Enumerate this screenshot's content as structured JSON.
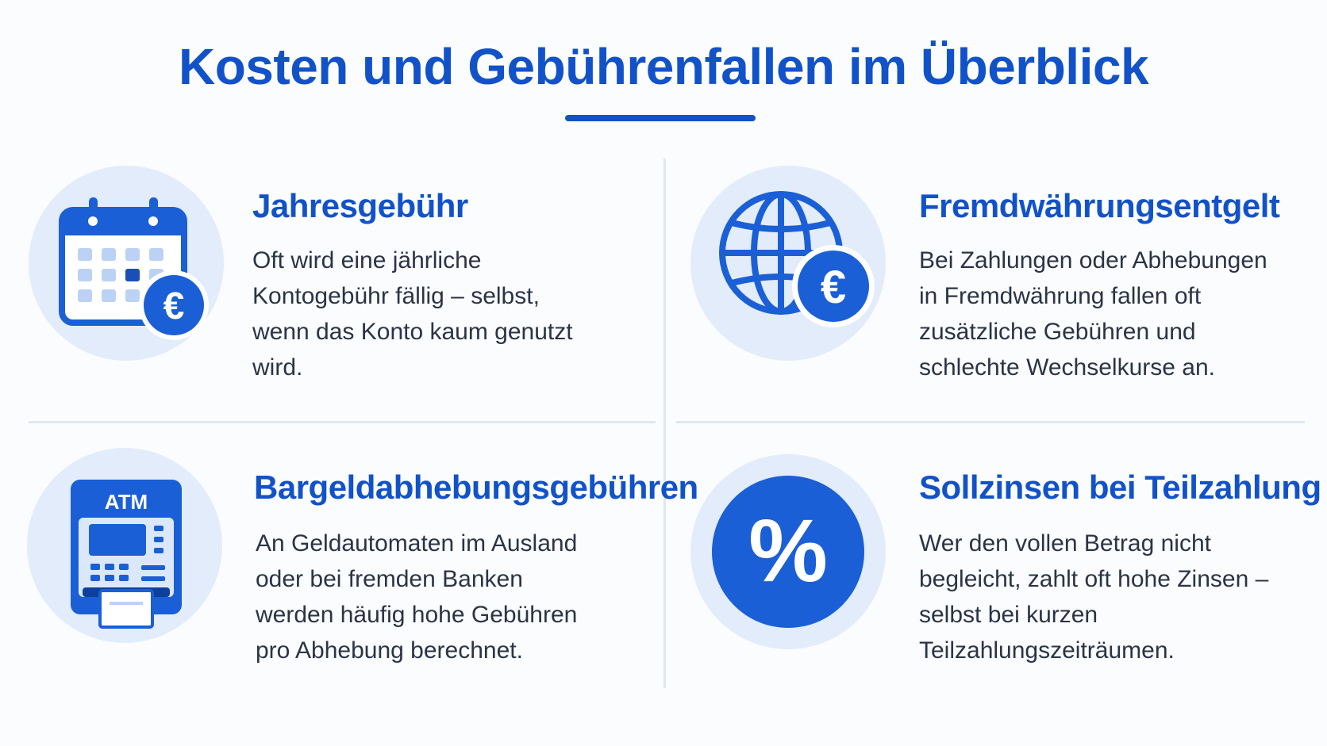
{
  "title": "Kosten und Gebührenfallen im Überblick",
  "colors": {
    "accent": "#1252c9",
    "accent_light": "#e3ecfa",
    "text": "#2b3446",
    "divider": "#e1e7f1"
  },
  "cards": [
    {
      "icon": "calendar-euro-icon",
      "title": "Jahresgebühr",
      "text": "Oft wird eine jährliche\nKontogebühr fällig – selbst,\nwenn das Konto kaum genutzt\nwird."
    },
    {
      "icon": "globe-euro-icon",
      "title": "Fremdwährungsentgelt",
      "text": "Bei Zahlungen oder Abhebungen\nin Fremdwährung fallen oft\nzusätzliche Gebühren und\nschlechte Wechselkurse an."
    },
    {
      "icon": "atm-icon",
      "icon_label": "ATM",
      "title": "Bargeldabhebungsgebühren",
      "text": "An Geldautomaten im Ausland\noder bei fremden Banken\nwerden häufig hohe Gebühren\npro Abhebung berechnet."
    },
    {
      "icon": "percent-icon",
      "title": "Sollzinsen bei Teilzahlung",
      "text": "Wer den vollen Betrag nicht\nbegleicht, zahlt oft hohe Zinsen –\nselbst bei kurzen\nTeilzahlungszeiträumen."
    }
  ]
}
